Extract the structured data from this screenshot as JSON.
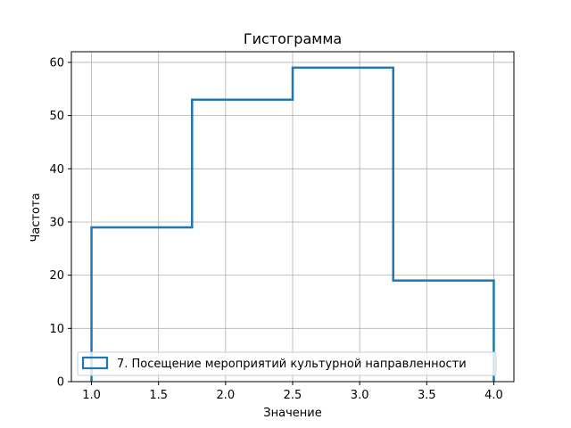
{
  "chart_data": {
    "type": "histogram",
    "title": "Гистограмма",
    "xlabel": "Значение",
    "ylabel": "Частота",
    "xlim": [
      0.85,
      4.15
    ],
    "ylim": [
      0,
      62
    ],
    "x_ticks": [
      "1.0",
      "1.5",
      "2.0",
      "2.5",
      "3.0",
      "3.5",
      "4.0"
    ],
    "y_ticks": [
      "0",
      "10",
      "20",
      "30",
      "40",
      "50",
      "60"
    ],
    "grid": true,
    "histtype": "step",
    "bin_edges": [
      1.0,
      1.75,
      2.5,
      3.25,
      4.0
    ],
    "series": [
      {
        "name": "7. Посещение мероприятий культурной направленности",
        "values": [
          29,
          53,
          59,
          19
        ],
        "color": "#1f77b4"
      }
    ],
    "legend_location": "lower-center"
  }
}
